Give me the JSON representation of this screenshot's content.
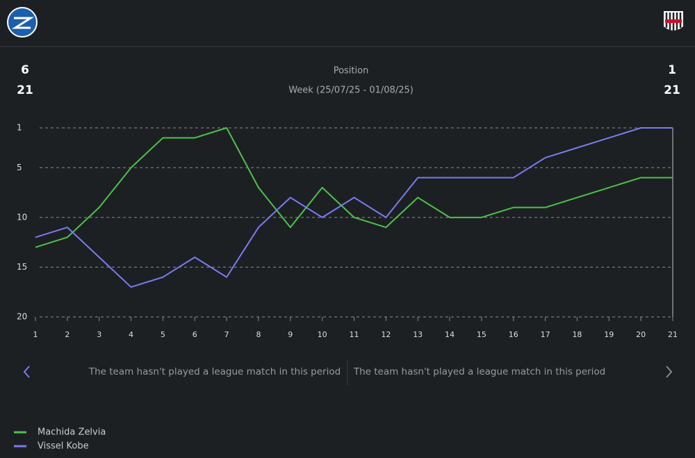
{
  "header": {
    "home_values": [
      "6",
      "21"
    ],
    "away_values": [
      "1",
      "21"
    ]
  },
  "chart_data": {
    "type": "line",
    "title": "Position",
    "subtitle": "Week (25/07/25 - 01/08/25)",
    "x": [
      1,
      2,
      3,
      4,
      5,
      6,
      7,
      8,
      9,
      10,
      11,
      12,
      13,
      14,
      15,
      16,
      17,
      18,
      19,
      20,
      21
    ],
    "xlim": [
      1,
      21
    ],
    "xticks": [
      1,
      2,
      3,
      4,
      5,
      6,
      7,
      8,
      9,
      10,
      11,
      12,
      13,
      14,
      15,
      16,
      17,
      18,
      19,
      20,
      21
    ],
    "ylim": [
      1,
      20
    ],
    "yticks": [
      1,
      5,
      10,
      15,
      20
    ],
    "y_reversed": true,
    "grid": true,
    "series": [
      {
        "name": "Machida Zelvia",
        "color": "#4cc24c",
        "values": [
          13,
          12,
          9,
          5,
          2,
          2,
          1,
          7,
          11,
          7,
          10,
          11,
          8,
          10,
          10,
          9,
          9,
          8,
          7,
          6,
          6
        ]
      },
      {
        "name": "Vissel Kobe",
        "color": "#7b7bf0",
        "values": [
          12,
          11,
          14,
          17,
          16,
          14,
          16,
          11,
          8,
          10,
          8,
          10,
          6,
          6,
          6,
          6,
          4,
          3,
          2,
          1,
          1
        ]
      }
    ]
  },
  "messages": [
    "The team hasn't played a league match in this period",
    "The team hasn't played a league match in this period"
  ]
}
